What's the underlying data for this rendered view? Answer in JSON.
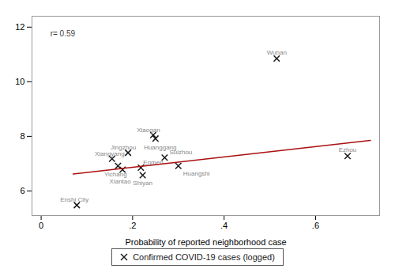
{
  "chart_data": {
    "type": "scatter",
    "xlabel": "Probability of reported neighborhood case",
    "xlim": [
      -0.02,
      0.74
    ],
    "ylim": [
      5.1,
      12.4
    ],
    "xticks": [
      0,
      {
        "value": 0.2,
        "label": ".2"
      },
      {
        "value": 0.4,
        "label": ".4"
      },
      {
        "value": 0.6,
        "label": ".6"
      }
    ],
    "yticks": [
      6,
      8,
      10,
      12
    ],
    "grid": false,
    "legend": "bottom",
    "series": [
      {
        "name": "Confirmed COVID-19 cases (logged)",
        "type": "scatter",
        "marker": "x",
        "color": "#1a1a1a",
        "x": [
          0.515,
          0.67,
          0.245,
          0.25,
          0.19,
          0.27,
          0.3,
          0.155,
          0.168,
          0.178,
          0.218,
          0.222,
          0.078
        ],
        "values": [
          10.85,
          7.28,
          8.05,
          7.92,
          7.4,
          7.22,
          6.92,
          7.18,
          6.92,
          6.78,
          6.85,
          6.58,
          5.48
        ],
        "point_labels": [
          "Wuhan",
          "Ezhou",
          "Xiaogan",
          "Huanggang",
          "Jingzhou",
          "Suizhou",
          "Huangshi",
          "Xiangyang",
          "Yichang",
          "Xiantao",
          "Enmen",
          "Shiyan",
          "Enshi City"
        ]
      },
      {
        "type": "line",
        "color": "#aa1111",
        "x": [
          0.07,
          0.72
        ],
        "values": [
          6.62,
          7.85
        ]
      }
    ],
    "annotations": [
      {
        "text": "r= 0.59",
        "x": 0.02,
        "y": 11.75
      }
    ]
  }
}
